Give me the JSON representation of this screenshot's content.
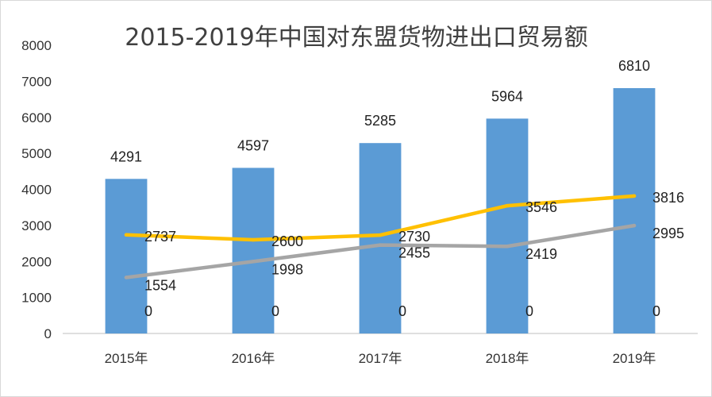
{
  "chart_data": {
    "type": "bar",
    "title": "2015-2019年中国对东盟货物进出口贸易额",
    "categories": [
      "2015年",
      "2016年",
      "2017年",
      "2018年",
      "2019年"
    ],
    "ylim": [
      0,
      8000
    ],
    "y_ticks": [
      0,
      1000,
      2000,
      3000,
      4000,
      5000,
      6000,
      7000,
      8000
    ],
    "grid": false,
    "legend": "none",
    "series": [
      {
        "type": "bar",
        "color": "#5b9bd5",
        "values": [
          4291,
          4597,
          5285,
          5964,
          6810
        ]
      },
      {
        "type": "line",
        "color": "#ffc000",
        "values": [
          2737,
          2600,
          2730,
          3546,
          3816
        ]
      },
      {
        "type": "line",
        "color": "#a5a5a5",
        "values": [
          1554,
          1998,
          2455,
          2419,
          2995
        ]
      },
      {
        "type": "line",
        "color": "none",
        "values": [
          0,
          0,
          0,
          0,
          0
        ]
      }
    ]
  }
}
